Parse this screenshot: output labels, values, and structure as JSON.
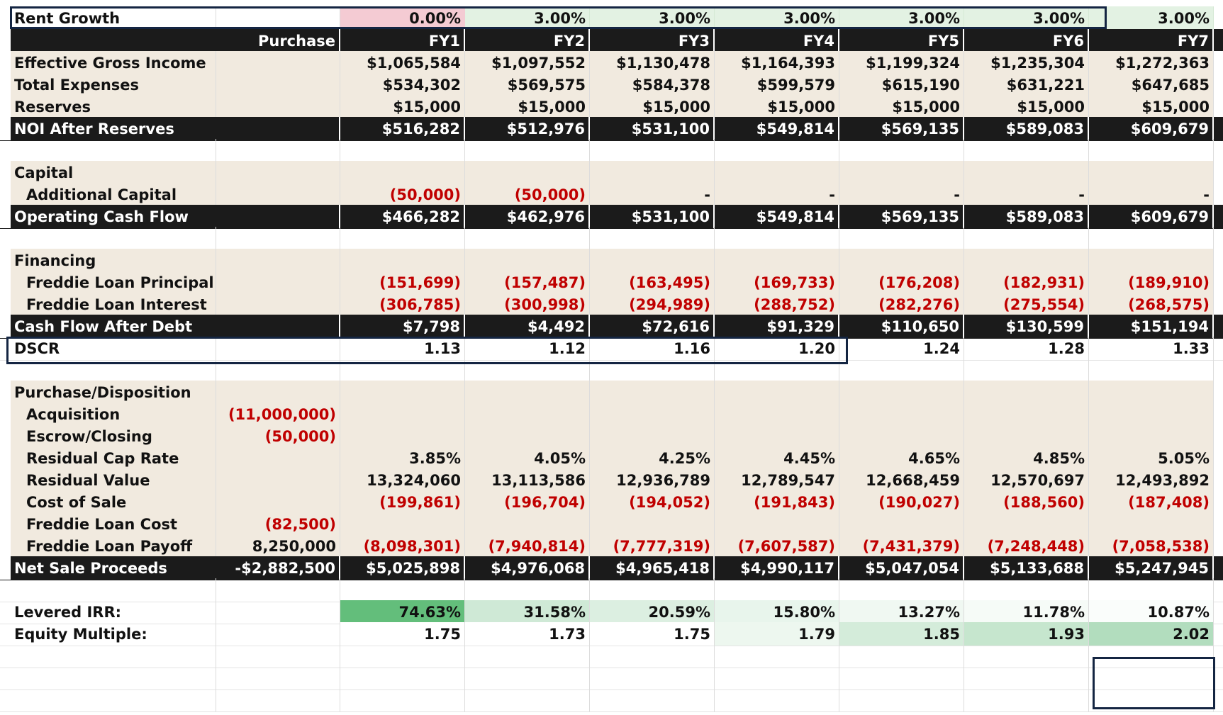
{
  "colors": {
    "header_bg": "#1b1b1b",
    "shade_bg": "#f1eadf",
    "negative": "#c00000",
    "zero_growth": "#f4cbd3",
    "growth": "#e3f2e3"
  },
  "rent_growth": {
    "label": "Rent Growth",
    "values": [
      "0.00%",
      "3.00%",
      "3.00%",
      "3.00%",
      "3.00%",
      "3.00%",
      "3.00%"
    ]
  },
  "header": {
    "purchase": "Purchase",
    "years": [
      "FY1",
      "FY2",
      "FY3",
      "FY4",
      "FY5",
      "FY6",
      "FY7"
    ]
  },
  "income": [
    {
      "label": "Effective Gross Income",
      "values": [
        "$1,065,584",
        "$1,097,552",
        "$1,130,478",
        "$1,164,393",
        "$1,199,324",
        "$1,235,304",
        "$1,272,363"
      ]
    },
    {
      "label": "Total Expenses",
      "values": [
        "$534,302",
        "$569,575",
        "$584,378",
        "$599,579",
        "$615,190",
        "$631,221",
        "$647,685"
      ]
    },
    {
      "label": "Reserves",
      "values": [
        "$15,000",
        "$15,000",
        "$15,000",
        "$15,000",
        "$15,000",
        "$15,000",
        "$15,000"
      ]
    }
  ],
  "noi": {
    "label": "NOI After Reserves",
    "values": [
      "$516,282",
      "$512,976",
      "$531,100",
      "$549,814",
      "$569,135",
      "$589,083",
      "$609,679"
    ]
  },
  "capital": {
    "heading": "Capital",
    "additional": {
      "label": "Additional Capital",
      "values": [
        "(50,000)",
        "(50,000)",
        "-",
        "-",
        "-",
        "-",
        "-"
      ]
    }
  },
  "operating_cash_flow": {
    "label": "Operating Cash Flow",
    "values": [
      "$466,282",
      "$462,976",
      "$531,100",
      "$549,814",
      "$569,135",
      "$589,083",
      "$609,679"
    ]
  },
  "financing": {
    "heading": "Financing",
    "principal": {
      "label": "Freddie  Loan Principal",
      "values": [
        "(151,699)",
        "(157,487)",
        "(163,495)",
        "(169,733)",
        "(176,208)",
        "(182,931)",
        "(189,910)"
      ]
    },
    "interest": {
      "label": "Freddie  Loan Interest",
      "values": [
        "(306,785)",
        "(300,998)",
        "(294,989)",
        "(288,752)",
        "(282,276)",
        "(275,554)",
        "(268,575)"
      ]
    }
  },
  "cash_flow_after_debt": {
    "label": "Cash Flow After Debt",
    "values": [
      "$7,798",
      "$4,492",
      "$72,616",
      "$91,329",
      "$110,650",
      "$130,599",
      "$151,194"
    ]
  },
  "dscr": {
    "label": "DSCR",
    "values": [
      "1.13",
      "1.12",
      "1.16",
      "1.20",
      "1.24",
      "1.28",
      "1.33"
    ]
  },
  "purchase_disposition": {
    "heading": "Purchase/Disposition",
    "acquisition": {
      "label": "Acquisition",
      "purchase": "(11,000,000)"
    },
    "escrow": {
      "label": "Escrow/Closing",
      "purchase": "(50,000)"
    },
    "cap_rate": {
      "label": "Residual Cap Rate",
      "values": [
        "3.85%",
        "4.05%",
        "4.25%",
        "4.45%",
        "4.65%",
        "4.85%",
        "5.05%"
      ]
    },
    "residual_value": {
      "label": "Residual Value",
      "values": [
        "13,324,060",
        "13,113,586",
        "12,936,789",
        "12,789,547",
        "12,668,459",
        "12,570,697",
        "12,493,892"
      ]
    },
    "cost_of_sale": {
      "label": "Cost of Sale",
      "values": [
        "(199,861)",
        "(196,704)",
        "(194,052)",
        "(191,843)",
        "(190,027)",
        "(188,560)",
        "(187,408)"
      ]
    },
    "loan_cost": {
      "label": "Freddie  Loan Cost",
      "purchase": "(82,500)"
    },
    "loan_payoff": {
      "label": "Freddie  Loan Payoff",
      "purchase": "8,250,000",
      "values": [
        "(8,098,301)",
        "(7,940,814)",
        "(7,777,319)",
        "(7,607,587)",
        "(7,431,379)",
        "(7,248,448)",
        "(7,058,538)"
      ]
    }
  },
  "net_sale_proceeds": {
    "label": "Net Sale Proceeds",
    "purchase": "-$2,882,500",
    "values": [
      "$5,025,898",
      "$4,976,068",
      "$4,965,418",
      "$4,990,117",
      "$5,047,054",
      "$5,133,688",
      "$5,247,945"
    ]
  },
  "levered_irr": {
    "label": "Levered IRR:",
    "values": [
      "74.63%",
      "31.58%",
      "20.59%",
      "15.80%",
      "13.27%",
      "11.78%",
      "10.87%"
    ],
    "shades": [
      "#63be7b",
      "#cfe9d6",
      "#dcefe1",
      "#e8f5ec",
      "#f0f8f2",
      "#f6fbf7",
      "#fafdfb"
    ]
  },
  "equity_multiple": {
    "label": "Equity Multiple:",
    "values": [
      "1.75",
      "1.73",
      "1.75",
      "1.79",
      "1.85",
      "1.93",
      "2.02"
    ],
    "shades": [
      "#ffffff",
      "#ffffff",
      "#ffffff",
      "#edf7ef",
      "#d4ecda",
      "#c6e6ce",
      "#b2ddbe"
    ]
  }
}
